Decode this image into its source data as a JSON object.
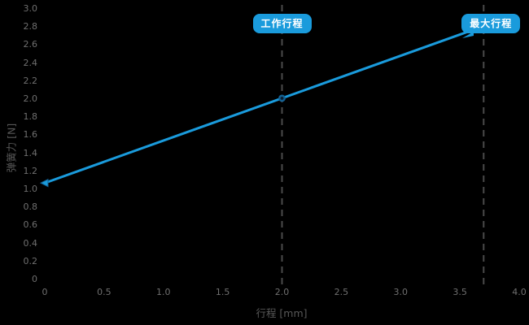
{
  "chart_data": {
    "type": "line",
    "title": "",
    "xlabel": "行程 [mm]",
    "ylabel": "弹簧力 [N]",
    "xlim": [
      0,
      4.0
    ],
    "ylim": [
      0,
      3.0
    ],
    "grid": false,
    "legend": null,
    "series": [
      {
        "name": "spring-force-line",
        "points": [
          [
            0,
            1.07
          ],
          [
            2.0,
            2.01
          ],
          [
            3.7,
            2.81
          ]
        ]
      }
    ],
    "xticks": {
      "values": [
        0,
        0.5,
        1.0,
        1.5,
        2.0,
        2.5,
        3.0,
        3.5,
        4.0
      ],
      "labels": [
        "0",
        "0.5",
        "1.0",
        "1.5",
        "2.0",
        "2.5",
        "3.0",
        "3.5",
        "4.0"
      ]
    },
    "yticks": {
      "values": [
        3.0,
        2.8,
        2.6,
        2.4,
        2.2,
        2.0,
        1.8,
        1.6,
        1.4,
        1.2,
        1.0,
        0.8,
        0.6,
        0.4,
        0.2,
        0
      ],
      "labels": [
        "3.0",
        "2.8",
        "2.6",
        "2.4",
        "2.2",
        "2.0",
        "1.8",
        "1.6",
        "1.4",
        "1.2",
        "1.0",
        "0.8",
        "0.6",
        "0.4",
        "0.2",
        "0"
      ]
    },
    "annotations": [
      {
        "label": "工作行程",
        "x": 2.0,
        "callout": false
      },
      {
        "label": "最大行程",
        "x": 3.7,
        "callout": true
      }
    ],
    "markers": [
      {
        "shape": "triangle-left",
        "x": 0,
        "y": 1.07
      },
      {
        "shape": "ring",
        "x": 2.0,
        "y": 2.01
      }
    ]
  },
  "colors": {
    "background": "#000000",
    "line": "#1a9bdc",
    "badge_bg": "#1a9bdc",
    "badge_text": "#ffffff",
    "tick_label": "#6f6f6f",
    "axis_title": "#575757",
    "guide_line": "#4a4a4a",
    "marker_ring_fill": "#0a1f33",
    "marker_ring_stroke": "#136193"
  }
}
